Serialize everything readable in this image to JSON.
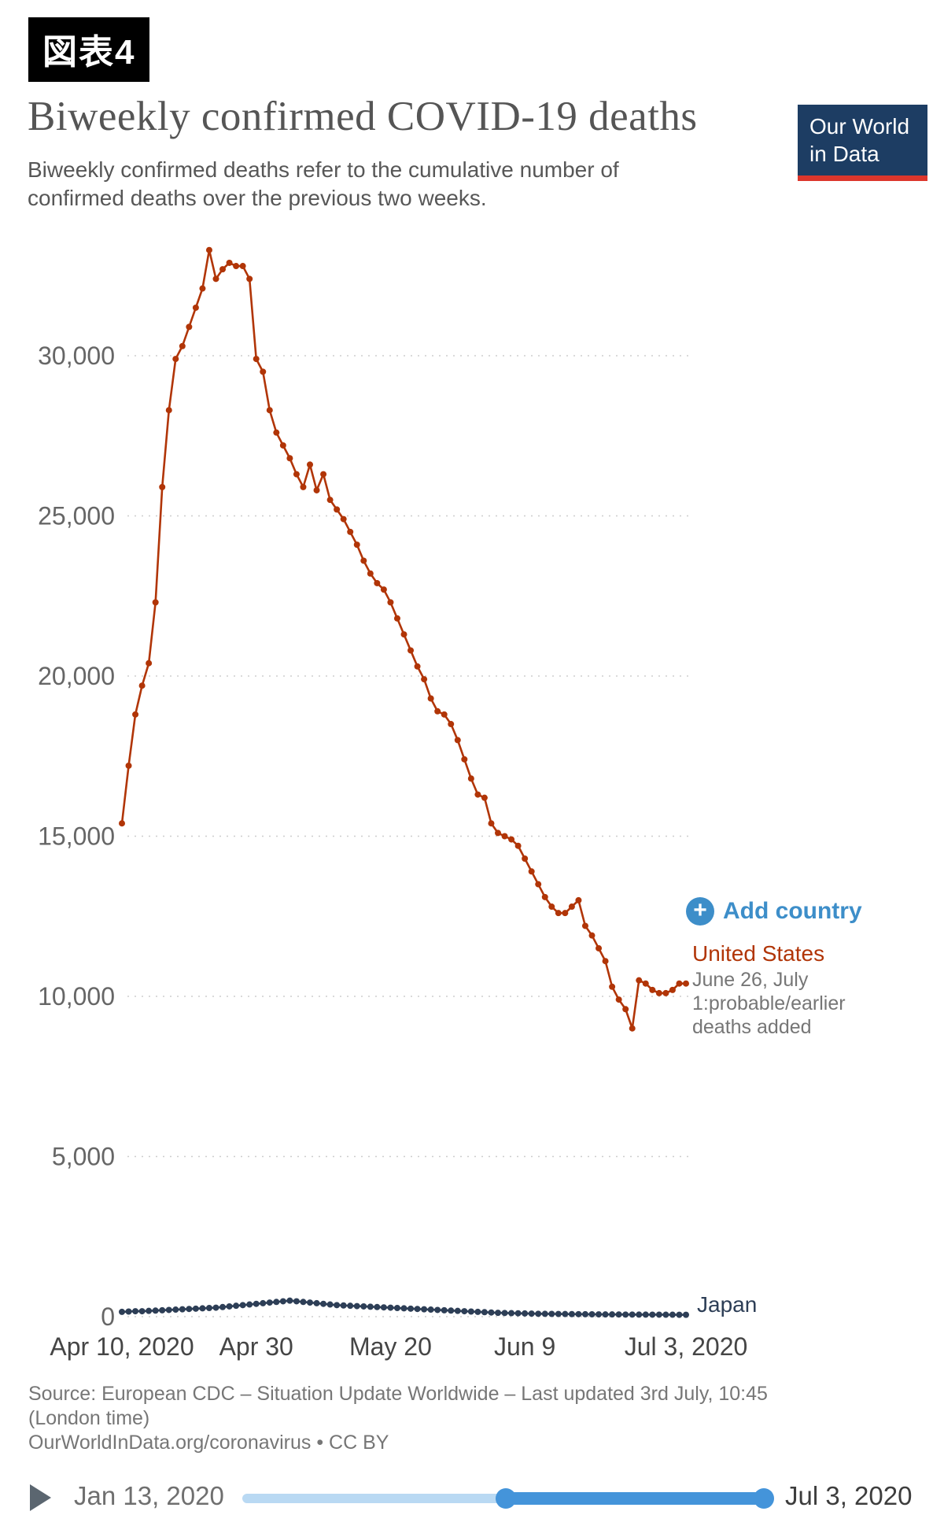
{
  "figure_tag": "図表4",
  "header": {
    "title": "Biweekly confirmed COVID-19 deaths",
    "subtitle": "Biweekly confirmed deaths refer to the cumulative number of confirmed deaths over the previous two weeks.",
    "logo": {
      "line1": "Our World",
      "line2": "in Data",
      "bg": "#1d3d63",
      "accent": "#dc362c"
    }
  },
  "legend": {
    "plus_icon": "+",
    "add_country_label": "Add country"
  },
  "series_labels": {
    "united_states": "United States",
    "us_annotation": "June 26, July 1:probable/earlier deaths added",
    "japan": "Japan"
  },
  "footer": {
    "source_line1": "Source: European CDC – Situation Update Worldwide – Last updated 3rd July, 10:45",
    "source_line2": "(London time)",
    "source_line3": "OurWorldInData.org/coronavirus • CC BY"
  },
  "timeline": {
    "start_label": "Jan 13, 2020",
    "end_label": "Jul 3, 2020"
  },
  "colors": {
    "us_line": "#b13507",
    "japan_line": "#2d3e56",
    "accent_blue": "#3d8ec9",
    "grid": "#cdcdcd"
  },
  "chart_data": {
    "type": "line",
    "title": "Biweekly confirmed COVID-19 deaths",
    "subtitle": "Biweekly confirmed deaths refer to the cumulative number of confirmed deaths over the previous two weeks.",
    "x_start": "Apr 10, 2020",
    "x_end": "Jul 3, 2020",
    "frequency": "daily",
    "points": 85,
    "x_tick_labels": [
      "Apr 10, 2020",
      "Apr 30",
      "May 20",
      "Jun 9",
      "Jul 3, 2020"
    ],
    "x_tick_positions": [
      0,
      20,
      40,
      60,
      84
    ],
    "y_ticks": [
      0,
      5000,
      10000,
      15000,
      20000,
      25000,
      30000
    ],
    "y_tick_labels": [
      "0",
      "5,000",
      "10,000",
      "15,000",
      "20,000",
      "25,000",
      "30,000"
    ],
    "ylim": [
      0,
      33500
    ],
    "grid": "dashed horizontal",
    "legend_position": "right of line ends",
    "annotation": "June 26, July 1:probable/earlier deaths added",
    "series": [
      {
        "name": "United States",
        "color": "#b13507",
        "values": [
          15400,
          17200,
          18800,
          19700,
          20400,
          22300,
          25900,
          28300,
          29900,
          30300,
          30900,
          31500,
          32100,
          33300,
          32400,
          32700,
          32900,
          32800,
          32800,
          32400,
          29900,
          29500,
          28300,
          27600,
          27200,
          26800,
          26300,
          25900,
          26600,
          25800,
          26300,
          25500,
          25200,
          24900,
          24500,
          24100,
          23600,
          23200,
          22900,
          22700,
          22300,
          21800,
          21300,
          20800,
          20300,
          19900,
          19300,
          18900,
          18800,
          18500,
          18000,
          17400,
          16800,
          16300,
          16200,
          15400,
          15100,
          15000,
          14900,
          14700,
          14300,
          13900,
          13500,
          13100,
          12800,
          12600,
          12600,
          12800,
          13000,
          12200,
          11900,
          11500,
          11100,
          10300,
          9900,
          9600,
          9000,
          10500,
          10400,
          10200,
          10100,
          10100,
          10200,
          10400,
          10400
        ]
      },
      {
        "name": "Japan",
        "color": "#2d3e56",
        "values": [
          150,
          160,
          170,
          170,
          180,
          190,
          200,
          210,
          220,
          230,
          240,
          250,
          260,
          270,
          280,
          300,
          320,
          340,
          360,
          380,
          400,
          420,
          440,
          460,
          480,
          500,
          480,
          460,
          440,
          420,
          400,
          380,
          360,
          350,
          340,
          330,
          320,
          310,
          300,
          290,
          280,
          270,
          260,
          250,
          240,
          230,
          220,
          210,
          200,
          190,
          180,
          170,
          160,
          150,
          140,
          130,
          120,
          115,
          110,
          105,
          100,
          95,
          90,
          88,
          86,
          84,
          82,
          80,
          78,
          76,
          74,
          72,
          70,
          70,
          68,
          66,
          66,
          64,
          64,
          62,
          62,
          60,
          60,
          58,
          58
        ]
      }
    ]
  }
}
